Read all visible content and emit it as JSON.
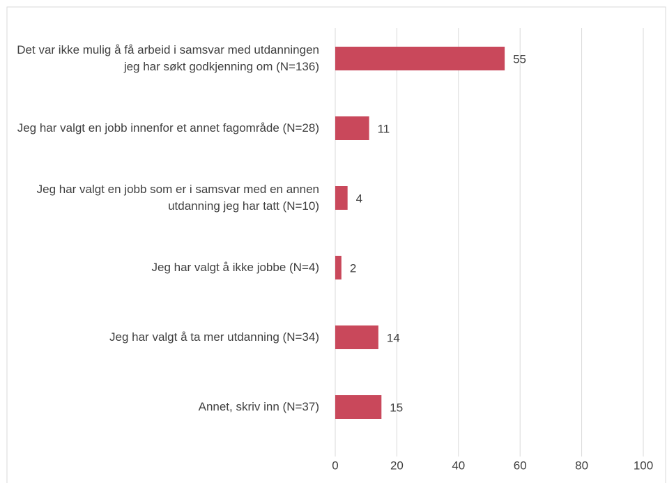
{
  "chart_data": {
    "type": "bar",
    "orientation": "horizontal",
    "categories": [
      "Det var ikke mulig å få arbeid i samsvar med utdanningen jeg har søkt godkjenning om (N=136)",
      "Jeg har valgt en jobb innenfor et annet fagområde (N=28)",
      "Jeg har valgt en jobb som er i samsvar med en annen utdanning jeg har tatt (N=10)",
      "Jeg har valgt å ikke jobbe (N=4)",
      "Jeg har valgt å ta mer utdanning (N=34)",
      "Annet, skriv inn (N=37)"
    ],
    "values": [
      55,
      11,
      4,
      2,
      14,
      15
    ],
    "color": "#c9485b",
    "xlim": [
      0,
      100
    ],
    "xticks": [
      0,
      20,
      40,
      60,
      80,
      100
    ],
    "grid": true
  }
}
